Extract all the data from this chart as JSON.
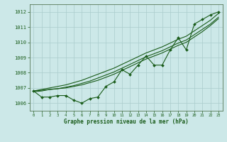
{
  "x": [
    0,
    1,
    2,
    3,
    4,
    5,
    6,
    7,
    8,
    9,
    10,
    11,
    12,
    13,
    14,
    15,
    16,
    17,
    18,
    19,
    20,
    21,
    22,
    23
  ],
  "pressure_main": [
    1006.8,
    1006.4,
    1006.4,
    1006.5,
    1006.5,
    1006.2,
    1006.0,
    1006.3,
    1006.4,
    1007.1,
    1007.4,
    1008.2,
    1007.9,
    1008.5,
    1009.1,
    1008.5,
    1008.5,
    1009.5,
    1010.3,
    1009.5,
    1011.2,
    1011.5,
    1011.8,
    1012.0
  ],
  "trend_line1": [
    1006.8,
    1006.85,
    1006.9,
    1006.95,
    1007.0,
    1007.1,
    1007.2,
    1007.35,
    1007.5,
    1007.7,
    1007.9,
    1008.15,
    1008.4,
    1008.65,
    1008.9,
    1009.1,
    1009.3,
    1009.55,
    1009.8,
    1010.0,
    1010.35,
    1010.7,
    1011.1,
    1011.55
  ],
  "trend_line2": [
    1006.75,
    1006.8,
    1006.9,
    1006.95,
    1007.05,
    1007.15,
    1007.3,
    1007.45,
    1007.65,
    1007.85,
    1008.05,
    1008.3,
    1008.55,
    1008.8,
    1009.05,
    1009.25,
    1009.45,
    1009.7,
    1009.95,
    1010.15,
    1010.5,
    1010.85,
    1011.2,
    1011.65
  ],
  "trend_line3": [
    1006.8,
    1006.9,
    1007.0,
    1007.1,
    1007.2,
    1007.35,
    1007.5,
    1007.7,
    1007.9,
    1008.1,
    1008.3,
    1008.55,
    1008.8,
    1009.05,
    1009.3,
    1009.5,
    1009.7,
    1009.95,
    1010.2,
    1010.4,
    1010.75,
    1011.1,
    1011.45,
    1011.9
  ],
  "ylim": [
    1005.5,
    1012.5
  ],
  "yticks": [
    1006,
    1007,
    1008,
    1009,
    1010,
    1011,
    1012
  ],
  "xticks": [
    0,
    1,
    2,
    3,
    4,
    5,
    6,
    7,
    8,
    9,
    10,
    11,
    12,
    13,
    14,
    15,
    16,
    17,
    18,
    19,
    20,
    21,
    22,
    23
  ],
  "line_color": "#1a5c1a",
  "bg_color": "#cce8e8",
  "grid_color": "#aacccc",
  "xlabel": "Graphe pression niveau de la mer (hPa)",
  "tick_label_color": "#1a5c1a"
}
